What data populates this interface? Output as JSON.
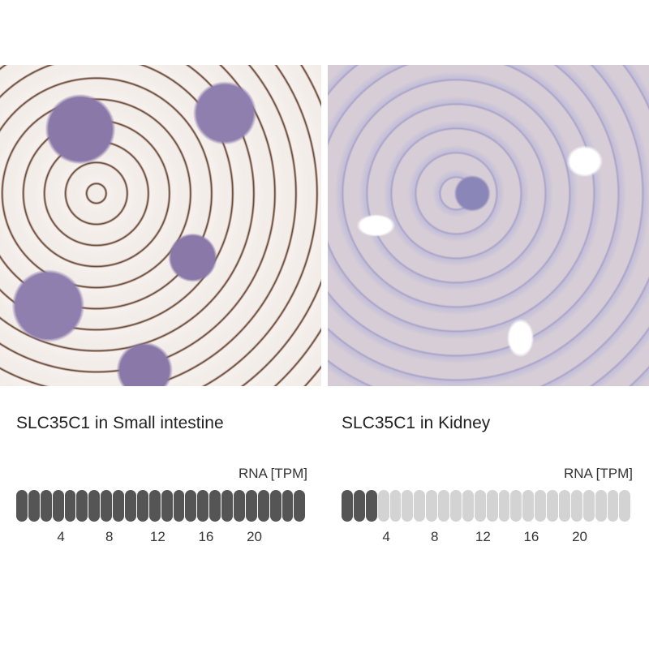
{
  "panels": [
    {
      "caption": "SLC35C1 in Small intestine",
      "rna_label": "RNA [TPM]",
      "total_bars": 24,
      "filled_bars": 24,
      "ticks": [
        "4",
        "8",
        "12",
        "16",
        "20"
      ]
    },
    {
      "caption": "SLC35C1 in Kidney",
      "rna_label": "RNA [TPM]",
      "total_bars": 24,
      "filled_bars": 3,
      "ticks": [
        "4",
        "8",
        "12",
        "16",
        "20"
      ]
    }
  ],
  "colors": {
    "filled": "#555555",
    "empty": "#d3d3d3"
  }
}
